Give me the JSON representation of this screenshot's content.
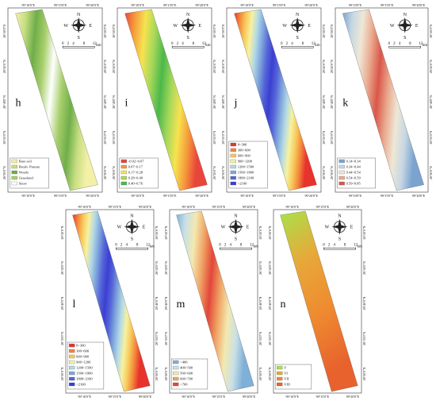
{
  "coords": {
    "lon": [
      "99°10'0\"E",
      "99°15'0\"E",
      "99°20'0\"E"
    ],
    "lat": [
      "26°50'0\"N",
      "26°45'0\"N",
      "26°40'0\"N",
      "26°35'0\"N",
      "26°30'0\"N"
    ]
  },
  "compass": {
    "n": "N",
    "s": "S",
    "e": "E",
    "w": "W"
  },
  "scale": {
    "ticks": [
      0,
      2,
      4,
      8,
      12
    ],
    "unit": "km"
  },
  "panels": [
    {
      "label": "h",
      "legend": [
        {
          "label": "Bare soil",
          "color": "#f3f0a8"
        },
        {
          "label": "Brush- Pasture",
          "color": "#c8de82"
        },
        {
          "label": "Woods",
          "color": "#6fae4a"
        },
        {
          "label": "Grassland",
          "color": "#a7cf6a"
        },
        {
          "label": "Snow",
          "color": "#ffffff"
        }
      ]
    },
    {
      "label": "i",
      "legend": [
        {
          "label": "-0.02~0.07",
          "color": "#e8463a"
        },
        {
          "label": "0.07~0.17",
          "color": "#f59a3c"
        },
        {
          "label": "0.17~0.28",
          "color": "#f7e34f"
        },
        {
          "label": "0.28~0.40",
          "color": "#a5d85a"
        },
        {
          "label": "0.40~0.76",
          "color": "#4cb84a"
        }
      ]
    },
    {
      "label": "j",
      "legend": [
        {
          "label": "0~300",
          "color": "#e8322c"
        },
        {
          "label": "300~600",
          "color": "#f2853a"
        },
        {
          "label": "600~900",
          "color": "#f8c85a"
        },
        {
          "label": "900~1200",
          "color": "#f6f2a0"
        },
        {
          "label": "1200~1500",
          "color": "#b3d9e6"
        },
        {
          "label": "1500~1800",
          "color": "#7fa6dc"
        },
        {
          "label": "1800~2100",
          "color": "#5566d8"
        },
        {
          "label": ">2100",
          "color": "#3b3fd2"
        }
      ]
    },
    {
      "label": "k",
      "legend": [
        {
          "label": "0.14~0.34",
          "color": "#7ba3d0"
        },
        {
          "label": "0.34~0.44",
          "color": "#c6d7e3"
        },
        {
          "label": "0.44~0.54",
          "color": "#efe7d6"
        },
        {
          "label": "0.54~0.59",
          "color": "#eaa98e"
        },
        {
          "label": "0.59~0.85",
          "color": "#d9574a"
        }
      ]
    },
    {
      "label": "l",
      "legend": [
        {
          "label": "0~300",
          "color": "#e8322c"
        },
        {
          "label": "300~600",
          "color": "#f2853a"
        },
        {
          "label": "600~900",
          "color": "#f8c85a"
        },
        {
          "label": "900~1200",
          "color": "#f6f2a0"
        },
        {
          "label": "1200~1500",
          "color": "#b3d9e6"
        },
        {
          "label": "1500~1800",
          "color": "#7fa6dc"
        },
        {
          "label": "1800~2100",
          "color": "#5566d8"
        },
        {
          "label": ">2100",
          "color": "#3b3fd2"
        }
      ]
    },
    {
      "label": "m",
      "legend": [
        {
          "label": "<400",
          "color": "#7fb0d8"
        },
        {
          "label": "400~500",
          "color": "#c9e0e6"
        },
        {
          "label": "500~600",
          "color": "#f3e9b0"
        },
        {
          "label": "600~700",
          "color": "#f0a364"
        },
        {
          "label": ">700",
          "color": "#e2463a"
        }
      ]
    },
    {
      "label": "n",
      "legend": [
        {
          "label": "V",
          "color": "#a8e24a"
        },
        {
          "label": "VI",
          "color": "#e8a83a"
        },
        {
          "label": "VII",
          "color": "#ef8a30"
        },
        {
          "label": "VIII",
          "color": "#e8622e"
        }
      ]
    }
  ]
}
